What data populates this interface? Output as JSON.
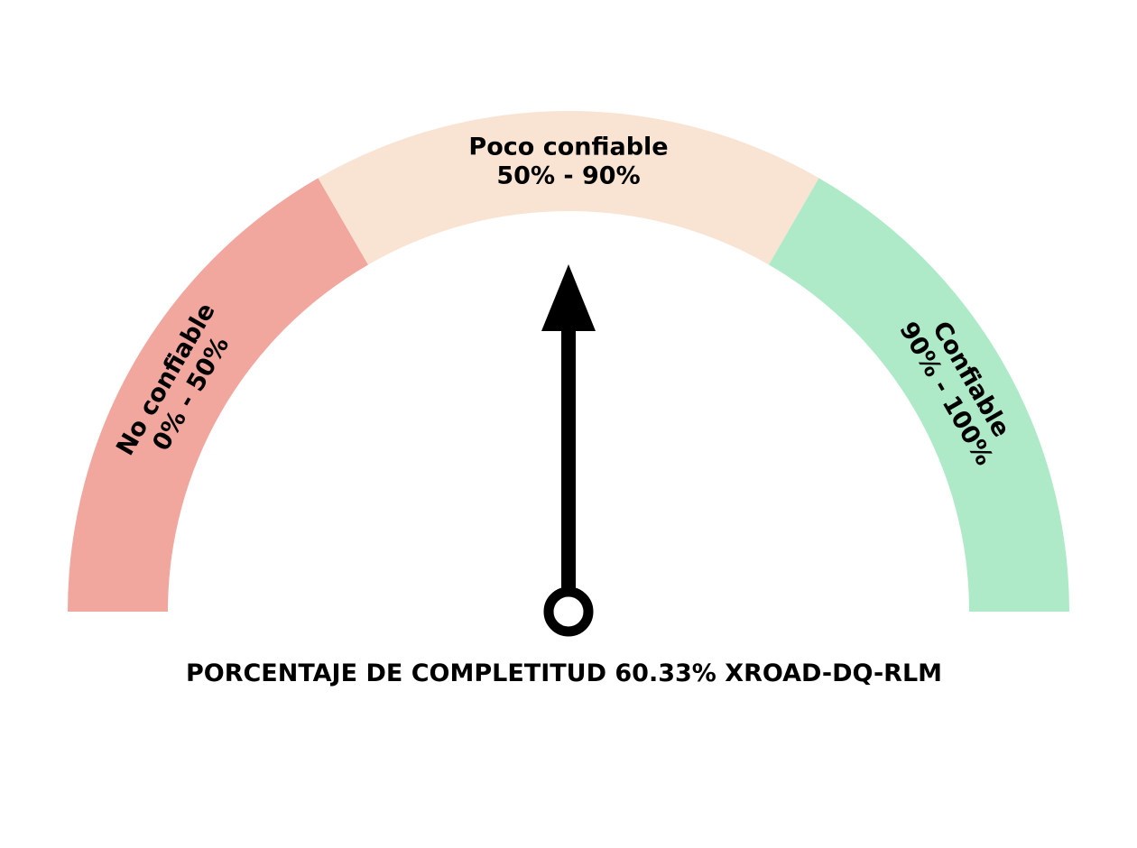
{
  "chart_data": {
    "type": "gauge",
    "title": "PORCENTAJE DE COMPLETITUD 60.33% XROAD-DQ-RLM",
    "value": 60.33,
    "range": [
      0,
      100
    ],
    "needle_direction": "up",
    "segments": [
      {
        "name": "No confiable",
        "range_label": "0% - 50%",
        "from": 0,
        "to": 50,
        "color": "#f1a79e"
      },
      {
        "name": "Poco confiable",
        "range_label": "50% - 90%",
        "from": 50,
        "to": 90,
        "color": "#f9e4d4"
      },
      {
        "name": "Confiable",
        "range_label": "90% - 100%",
        "from": 90,
        "to": 100,
        "color": "#aeeac8"
      }
    ]
  }
}
